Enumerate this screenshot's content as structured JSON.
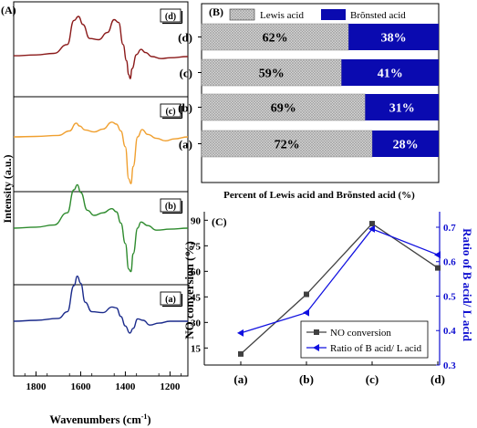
{
  "chart_data": [
    {
      "panel_label": "(A)",
      "type": "line",
      "xlabel": "Wavenumbers (cm",
      "xlabel_superscript": "-1",
      "xlabel_suffix": ")",
      "ylabel": "Intensity (a.u.)",
      "xlim": [
        1900,
        1120
      ],
      "x_ticks": [
        1800,
        1600,
        1400,
        1200
      ],
      "x_tick_labels": [
        "1800",
        "1600",
        "1400",
        "1200"
      ],
      "x_reversed": true,
      "series": [
        {
          "label": "(d)",
          "color": "#8B1A1A",
          "points": [
            [
              1900,
              0.02
            ],
            [
              1800,
              0.04
            ],
            [
              1720,
              0.08
            ],
            [
              1660,
              0.3
            ],
            [
              1630,
              0.9
            ],
            [
              1610,
              1.0
            ],
            [
              1590,
              0.8
            ],
            [
              1560,
              0.45
            ],
            [
              1520,
              0.42
            ],
            [
              1480,
              0.6
            ],
            [
              1450,
              0.92
            ],
            [
              1430,
              0.85
            ],
            [
              1410,
              0.3
            ],
            [
              1395,
              -0.1
            ],
            [
              1385,
              -0.45
            ],
            [
              1378,
              -0.55
            ],
            [
              1370,
              -0.3
            ],
            [
              1350,
              0.05
            ],
            [
              1330,
              0.18
            ],
            [
              1310,
              0.1
            ],
            [
              1280,
              0.0
            ],
            [
              1240,
              -0.05
            ],
            [
              1200,
              -0.03
            ],
            [
              1120,
              0.0
            ]
          ]
        },
        {
          "label": "(c)",
          "color": "#F0A030",
          "points": [
            [
              1900,
              0.0
            ],
            [
              1800,
              0.01
            ],
            [
              1700,
              0.03
            ],
            [
              1650,
              0.12
            ],
            [
              1620,
              0.28
            ],
            [
              1605,
              0.22
            ],
            [
              1580,
              0.14
            ],
            [
              1540,
              0.1
            ],
            [
              1500,
              0.16
            ],
            [
              1460,
              0.3
            ],
            [
              1440,
              0.26
            ],
            [
              1420,
              0.12
            ],
            [
              1400,
              -0.2
            ],
            [
              1385,
              -0.85
            ],
            [
              1375,
              -0.95
            ],
            [
              1365,
              -0.6
            ],
            [
              1345,
              0.0
            ],
            [
              1325,
              0.15
            ],
            [
              1300,
              0.05
            ],
            [
              1260,
              -0.03
            ],
            [
              1220,
              -0.08
            ],
            [
              1180,
              -0.04
            ],
            [
              1120,
              0.0
            ]
          ]
        },
        {
          "label": "(b)",
          "color": "#2E8B2E",
          "points": [
            [
              1900,
              0.0
            ],
            [
              1800,
              0.02
            ],
            [
              1720,
              0.06
            ],
            [
              1660,
              0.3
            ],
            [
              1630,
              0.75
            ],
            [
              1615,
              0.85
            ],
            [
              1600,
              0.7
            ],
            [
              1570,
              0.35
            ],
            [
              1540,
              0.25
            ],
            [
              1500,
              0.3
            ],
            [
              1460,
              0.38
            ],
            [
              1440,
              0.32
            ],
            [
              1420,
              0.1
            ],
            [
              1400,
              -0.3
            ],
            [
              1385,
              -0.8
            ],
            [
              1375,
              -0.85
            ],
            [
              1365,
              -0.5
            ],
            [
              1345,
              0.0
            ],
            [
              1330,
              0.12
            ],
            [
              1300,
              0.05
            ],
            [
              1260,
              -0.04
            ],
            [
              1200,
              -0.02
            ],
            [
              1120,
              0.0
            ]
          ]
        },
        {
          "label": "(a)",
          "color": "#1A2A8B",
          "points": [
            [
              1900,
              0.0
            ],
            [
              1800,
              0.02
            ],
            [
              1700,
              0.06
            ],
            [
              1660,
              0.2
            ],
            [
              1630,
              0.75
            ],
            [
              1615,
              0.95
            ],
            [
              1600,
              0.8
            ],
            [
              1580,
              0.4
            ],
            [
              1550,
              0.2
            ],
            [
              1500,
              0.18
            ],
            [
              1460,
              0.3
            ],
            [
              1440,
              0.28
            ],
            [
              1420,
              0.1
            ],
            [
              1400,
              -0.1
            ],
            [
              1380,
              -0.25
            ],
            [
              1365,
              -0.15
            ],
            [
              1345,
              0.05
            ],
            [
              1320,
              0.02
            ],
            [
              1290,
              -0.08
            ],
            [
              1250,
              -0.04
            ],
            [
              1200,
              0.0
            ],
            [
              1120,
              0.0
            ]
          ]
        }
      ]
    },
    {
      "panel_label": "(B)",
      "type": "bar",
      "orientation": "horizontal",
      "stacked": true,
      "xlabel": "Percent of Lewis acid and Brõnsted acid (%)",
      "xlim": [
        0,
        100
      ],
      "legend": [
        {
          "name": "Lewis acid",
          "color": "#cfcfcf",
          "pattern": "crosshatch"
        },
        {
          "name": "Brõnsted acid",
          "color": "#0a0ab0"
        }
      ],
      "categories": [
        "(d)",
        "(c)",
        "(b)",
        "(a)"
      ],
      "series": [
        {
          "name": "Lewis acid",
          "values": [
            62,
            59,
            69,
            72
          ],
          "labels": [
            "62%",
            "59%",
            "69%",
            "72%"
          ]
        },
        {
          "name": "Brõnsted acid",
          "values": [
            38,
            41,
            31,
            28
          ],
          "labels": [
            "38%",
            "41%",
            "31%",
            "28%"
          ]
        }
      ]
    },
    {
      "panel_label": "(C)",
      "type": "line",
      "categories": [
        "(a)",
        "(b)",
        "(c)",
        "(d)"
      ],
      "ylabel": "NO conversion (%)",
      "ylim": [
        5,
        95
      ],
      "y_ticks": [
        15,
        30,
        45,
        60,
        75,
        90
      ],
      "y_tick_labels": [
        "15",
        "30",
        "45",
        "60",
        "75",
        "90"
      ],
      "ylabel_right": "Ratio of B acid/ L acid",
      "ylim_right": [
        0.3,
        0.745
      ],
      "y_ticks_right": [
        0.3,
        0.4,
        0.5,
        0.6,
        0.7
      ],
      "y_tick_labels_right": [
        "0.3",
        "0.4",
        "0.5",
        "0.6",
        "0.7"
      ],
      "series": [
        {
          "name": "NO conversion",
          "axis": "left",
          "color": "#404040",
          "marker": "square",
          "values": [
            11.5,
            46.5,
            88,
            62
          ]
        },
        {
          "name": "Ratio of B acid/ L acid",
          "axis": "right",
          "color": "#1010e0",
          "marker": "triangle-left",
          "values": [
            0.393,
            0.452,
            0.695,
            0.62
          ]
        }
      ],
      "legend_position": "bottom-right"
    }
  ]
}
